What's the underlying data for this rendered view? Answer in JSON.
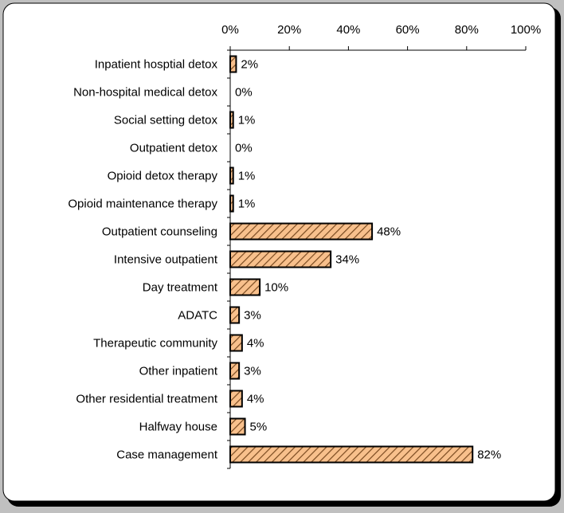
{
  "chart_data": {
    "type": "bar",
    "orientation": "horizontal",
    "categories": [
      "Inpatient hosptial detox",
      "Non-hospital medical detox",
      "Social setting detox",
      "Outpatient detox",
      "Opioid detox therapy",
      "Opioid maintenance therapy",
      "Outpatient counseling",
      "Intensive outpatient",
      "Day treatment",
      "ADATC",
      "Therapeutic community",
      "Other inpatient",
      "Other residential treatment",
      "Halfway house",
      "Case management"
    ],
    "values": [
      2,
      0,
      1,
      0,
      1,
      1,
      48,
      34,
      10,
      3,
      4,
      3,
      4,
      5,
      82
    ],
    "value_labels": [
      "2%",
      "0%",
      "1%",
      "0%",
      "1%",
      "1%",
      "48%",
      "34%",
      "10%",
      "3%",
      "4%",
      "3%",
      "4%",
      "5%",
      "82%"
    ],
    "color": "#f8c08c",
    "xlim": [
      0,
      100
    ],
    "xticks": [
      {
        "value": 0,
        "label": "0%"
      },
      {
        "value": 20,
        "label": "20%"
      },
      {
        "value": 40,
        "label": "40%"
      },
      {
        "value": 60,
        "label": "60%"
      },
      {
        "value": 80,
        "label": "80%"
      },
      {
        "value": 100,
        "label": "100%"
      }
    ]
  }
}
